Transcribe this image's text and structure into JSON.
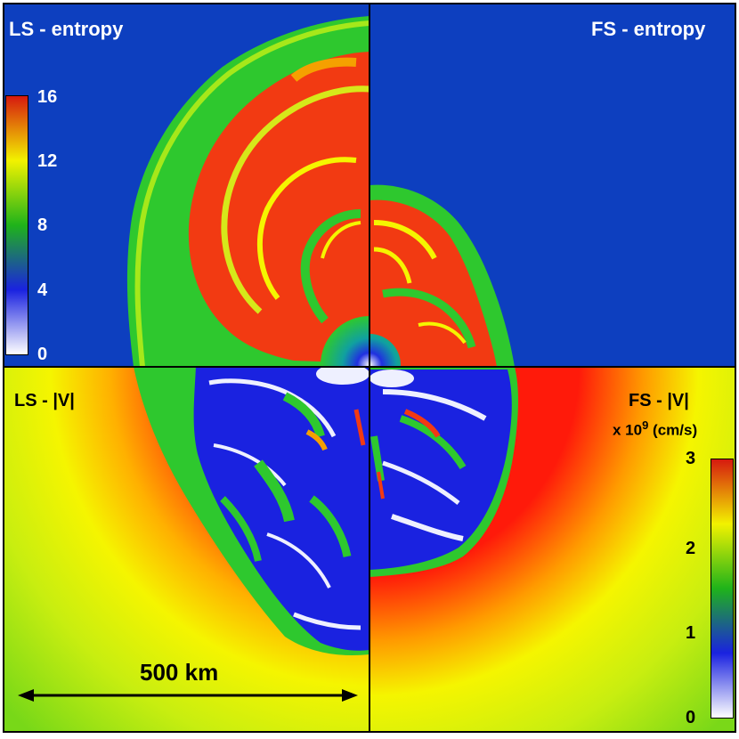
{
  "panels": {
    "top_left": {
      "label": "LS - entropy"
    },
    "top_right": {
      "label": "FS - entropy"
    },
    "bottom_left": {
      "label": "LS - |V|"
    },
    "bottom_right": {
      "label": "FS - |V|"
    }
  },
  "entropy_colorbar": {
    "ticks": [
      "16",
      "12",
      "8",
      "4",
      "0"
    ],
    "colors": [
      "#ffffff",
      "#1a22e0",
      "#1fb31a",
      "#f2f200",
      "#d61a0f"
    ]
  },
  "velocity_colorbar": {
    "unit_prefix": "x 10",
    "unit_exponent": "9",
    "unit_suffix": " (cm/s)",
    "ticks": [
      "3",
      "2",
      "1",
      "0"
    ],
    "colors": [
      "#ffffff",
      "#1a22e0",
      "#1fb31a",
      "#f2f200",
      "#d61a0f"
    ]
  },
  "scale_bar": {
    "label": "500 km"
  },
  "palette": {
    "background_blue": "#0d3fbf",
    "shell_green": "#2ec82e",
    "hot_red": "#f23a12",
    "yellow": "#f5f500",
    "low_white": "#eef0ff",
    "deep_blue": "#1a22e0"
  }
}
